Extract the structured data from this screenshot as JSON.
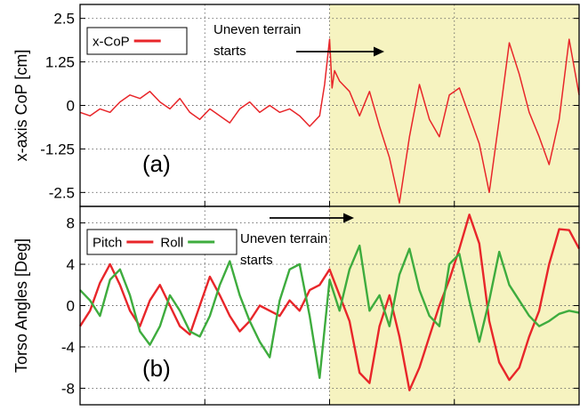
{
  "chart_data": [
    {
      "type": "line",
      "ylabel": "x-axis CoP [cm]",
      "ylim": [
        -2.9,
        2.9
      ],
      "yticks": [
        "2.5",
        "1.25",
        "0",
        "-1.25",
        "-2.5"
      ],
      "ytick_values": [
        2.5,
        1.25,
        0,
        -1.25,
        -2.5
      ],
      "xlim": [
        0,
        100
      ],
      "grid": "dotted",
      "legend": {
        "placement": "top-left"
      },
      "panel_label": "(a)",
      "annotation": {
        "line1": "Uneven terrain",
        "line2": "starts"
      },
      "shaded_region": {
        "from": 50,
        "to": 100,
        "color": "#f6f3c0"
      },
      "series": [
        {
          "name": "x-CoP",
          "color": "#e8262a",
          "x": [
            0,
            2,
            4,
            6,
            8,
            10,
            12,
            14,
            16,
            18,
            20,
            22,
            24,
            26,
            28,
            30,
            32,
            34,
            36,
            38,
            40,
            42,
            44,
            46,
            48,
            49,
            50,
            50.5,
            51,
            52,
            54,
            56,
            58,
            60,
            62,
            64,
            66,
            68,
            70,
            72,
            74,
            76,
            78,
            80,
            82,
            84,
            86,
            88,
            90,
            92,
            94,
            96,
            98,
            100
          ],
          "y": [
            -0.2,
            -0.3,
            -0.1,
            -0.2,
            0.1,
            0.3,
            0.2,
            0.4,
            0.1,
            -0.1,
            0.2,
            -0.2,
            -0.4,
            -0.1,
            -0.3,
            -0.5,
            -0.1,
            0.1,
            -0.2,
            0.0,
            -0.2,
            -0.1,
            -0.3,
            -0.6,
            -0.3,
            0.6,
            1.9,
            0.5,
            1.0,
            0.7,
            0.4,
            -0.3,
            0.4,
            -0.6,
            -1.5,
            -2.8,
            -0.9,
            0.6,
            -0.4,
            -0.9,
            0.3,
            0.5,
            -0.3,
            -1.1,
            -2.5,
            -0.4,
            1.8,
            0.9,
            -0.2,
            -0.9,
            -1.7,
            -0.4,
            1.9,
            0.3
          ]
        }
      ]
    },
    {
      "type": "line",
      "ylabel": "Torso Angles [Deg]",
      "ylim": [
        -9.6,
        9.6
      ],
      "yticks": [
        "8",
        "4",
        "0",
        "-4",
        "-8"
      ],
      "ytick_values": [
        8,
        4,
        0,
        -4,
        -8
      ],
      "xlim": [
        0,
        100
      ],
      "grid": "dotted",
      "legend": {
        "placement": "top-left"
      },
      "panel_label": "(b)",
      "annotation": {
        "line1": "Uneven terrain",
        "line2": "starts"
      },
      "shaded_region": {
        "from": 50,
        "to": 100,
        "color": "#f6f3c0"
      },
      "series": [
        {
          "name": "Pitch",
          "color": "#e8262a",
          "x": [
            0,
            2,
            4,
            6,
            8,
            10,
            12,
            14,
            16,
            18,
            20,
            22,
            24,
            26,
            28,
            30,
            32,
            34,
            36,
            38,
            40,
            42,
            44,
            46,
            48,
            50,
            52,
            54,
            56,
            58,
            60,
            62,
            64,
            66,
            68,
            70,
            72,
            74,
            76,
            78,
            80,
            82,
            84,
            86,
            88,
            90,
            92,
            94,
            96,
            98,
            100
          ],
          "y": [
            -2.0,
            -0.5,
            2.2,
            4.0,
            2.0,
            -0.5,
            -2.0,
            0.5,
            2.0,
            0.0,
            -2.0,
            -2.8,
            0.0,
            2.8,
            1.0,
            -1.0,
            -2.5,
            -1.5,
            0.0,
            -0.5,
            -1.0,
            0.5,
            -0.5,
            1.5,
            2.0,
            3.5,
            1.0,
            -1.5,
            -6.5,
            -7.5,
            -2.0,
            1.0,
            -3.0,
            -8.2,
            -6.0,
            -3.0,
            0.0,
            2.5,
            5.5,
            8.8,
            6.0,
            -1.5,
            -5.5,
            -7.2,
            -6.0,
            -3.0,
            -0.5,
            4.0,
            7.4,
            7.3,
            5.5
          ]
        },
        {
          "name": "Roll",
          "color": "#3eac3e",
          "x": [
            0,
            2,
            4,
            6,
            8,
            10,
            12,
            14,
            16,
            18,
            20,
            22,
            24,
            26,
            28,
            30,
            32,
            34,
            36,
            38,
            40,
            42,
            44,
            46,
            48,
            50,
            52,
            54,
            56,
            58,
            60,
            62,
            64,
            66,
            68,
            70,
            72,
            74,
            76,
            78,
            80,
            82,
            84,
            86,
            88,
            90,
            92,
            94,
            96,
            98,
            100
          ],
          "y": [
            1.5,
            0.5,
            -1.0,
            2.5,
            3.5,
            1.0,
            -2.5,
            -3.8,
            -2.0,
            1.0,
            -0.5,
            -2.5,
            -3.0,
            -1.0,
            2.0,
            4.3,
            1.0,
            -1.5,
            -3.5,
            -5.0,
            0.5,
            3.5,
            4.0,
            -1.0,
            -7.0,
            2.5,
            -0.5,
            3.5,
            5.8,
            -0.5,
            1.0,
            -2.0,
            3.0,
            5.5,
            1.5,
            -1.0,
            -2.0,
            4.0,
            5.0,
            0.5,
            -3.5,
            0.5,
            5.2,
            2.0,
            0.5,
            -1.0,
            -2.0,
            -1.5,
            -0.8,
            -0.5,
            -0.7
          ]
        }
      ]
    }
  ]
}
